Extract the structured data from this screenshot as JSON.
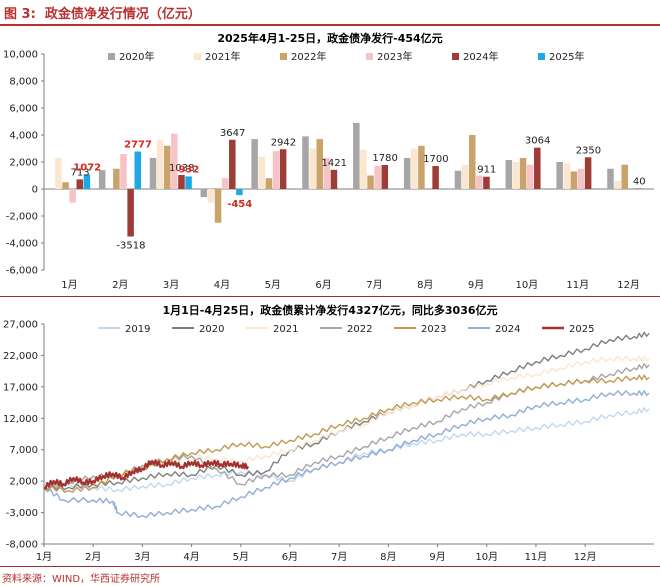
{
  "figure": {
    "label": "图 3:",
    "title": "政金债净发行情况（亿元）",
    "source": "资料来源：WIND，华西证券研究所"
  },
  "colors": {
    "accent": "#b8312f",
    "2019": "#c3d7ee",
    "2020": "#7f7f7f",
    "2021": "#fbe6d0",
    "2022": "#a6a6a6",
    "2023": "#c09a52",
    "2024": "#8faed3",
    "2025": "#a6302e"
  },
  "chart_data": [
    {
      "type": "bar",
      "title": "2025年4月1-25日，政金债净发行-454亿元",
      "categories": [
        "1月",
        "2月",
        "3月",
        "4月",
        "5月",
        "6月",
        "7月",
        "8月",
        "9月",
        "10月",
        "11月",
        "12月"
      ],
      "ylim": [
        -6000,
        10000
      ],
      "yticks": [
        "-6,000",
        "-4,000",
        "-2,000",
        "0",
        "2,000",
        "4,000",
        "6,000",
        "8,000",
        "10,000"
      ],
      "legend_position": "top",
      "series": [
        {
          "name": "2020年",
          "color": "#a6a6a6",
          "values": [
            0,
            1400,
            2300,
            -600,
            3700,
            3900,
            4900,
            2300,
            1350,
            2150,
            2000,
            1500
          ]
        },
        {
          "name": "2021年",
          "color": "#fbe6cf",
          "values": [
            2300,
            0,
            3600,
            -1000,
            2400,
            3000,
            2900,
            3000,
            1800,
            2000,
            1900,
            600
          ]
        },
        {
          "name": "2022年",
          "color": "#c9a36a",
          "values": [
            500,
            1500,
            3200,
            -2500,
            800,
            3700,
            1000,
            3200,
            4000,
            2300,
            1300,
            1800
          ]
        },
        {
          "name": "2023年",
          "color": "#f6c4c7",
          "values": [
            -1000,
            2600,
            4100,
            800,
            2800,
            2300,
            1700,
            0,
            1000,
            1800,
            1500,
            0
          ]
        },
        {
          "name": "2024年",
          "color": "#9e3c37",
          "values": [
            713,
            -3518,
            1038,
            3647,
            2942,
            1421,
            1780,
            1700,
            911,
            3064,
            2350,
            40
          ]
        },
        {
          "name": "2025年",
          "color": "#1ea8e6",
          "values": [
            1072,
            2777,
            932,
            -454,
            null,
            null,
            null,
            null,
            null,
            null,
            null,
            null
          ]
        }
      ],
      "data_labels": [
        {
          "category": 0,
          "series": "2024年",
          "text": "713",
          "color": "#222222"
        },
        {
          "category": 0,
          "series": "2025年",
          "text": "1072",
          "color": "#d72a23"
        },
        {
          "category": 1,
          "series": "2024年",
          "text": "-3518",
          "color": "#222222"
        },
        {
          "category": 1,
          "series": "2025年",
          "text": "2777",
          "color": "#d72a23"
        },
        {
          "category": 2,
          "series": "2024年",
          "text": "1038",
          "color": "#222222"
        },
        {
          "category": 2,
          "series": "2025年",
          "text": "932",
          "color": "#d72a23"
        },
        {
          "category": 3,
          "series": "2024年",
          "text": "3647",
          "color": "#222222"
        },
        {
          "category": 3,
          "series": "2025年",
          "text": "-454",
          "color": "#d72a23"
        },
        {
          "category": 4,
          "series": "2024年",
          "text": "2942",
          "color": "#222222"
        },
        {
          "category": 5,
          "series": "2024年",
          "text": "1421",
          "color": "#222222"
        },
        {
          "category": 6,
          "series": "2024年",
          "text": "1780",
          "color": "#222222"
        },
        {
          "category": 7,
          "series": "2024年",
          "text": "1700",
          "color": "#222222"
        },
        {
          "category": 8,
          "series": "2024年",
          "text": "911",
          "color": "#222222"
        },
        {
          "category": 9,
          "series": "2024年",
          "text": "3064",
          "color": "#222222"
        },
        {
          "category": 10,
          "series": "2024年",
          "text": "2350",
          "color": "#222222"
        },
        {
          "category": 11,
          "series": "2024年",
          "text": "40",
          "color": "#222222"
        }
      ]
    },
    {
      "type": "line",
      "title": "1月1日-4月25日，政金债累计净发行4327亿元，同比多3036亿元",
      "xlabels": [
        "1月",
        "2月",
        "3月",
        "4月",
        "5月",
        "6月",
        "7月",
        "8月",
        "9月",
        "10月",
        "11月",
        "12月"
      ],
      "xlim": [
        0,
        12.4
      ],
      "ylim": [
        -8000,
        27000
      ],
      "yticks": [
        "-8,000",
        "-3,000",
        "2,000",
        "7,000",
        "12,000",
        "17,000",
        "22,000",
        "27,000"
      ],
      "legend_position": "top",
      "series": [
        {
          "name": "2019",
          "color": "#c3d7ee",
          "points": [
            [
              0,
              2000
            ],
            [
              0.5,
              1500
            ],
            [
              1,
              1000
            ],
            [
              1.5,
              600
            ],
            [
              2,
              1200
            ],
            [
              2.5,
              1500
            ],
            [
              3,
              2500
            ],
            [
              3.5,
              3000
            ],
            [
              4,
              3500
            ],
            [
              4.5,
              3000
            ],
            [
              5,
              2000
            ],
            [
              5.5,
              4000
            ],
            [
              6,
              5000
            ],
            [
              6.5,
              6500
            ],
            [
              7,
              7000
            ],
            [
              7.5,
              8000
            ],
            [
              8,
              8500
            ],
            [
              8.5,
              9500
            ],
            [
              9,
              9500
            ],
            [
              9.5,
              10000
            ],
            [
              10,
              10500
            ],
            [
              10.5,
              11000
            ],
            [
              11,
              11500
            ],
            [
              11.5,
              12500
            ],
            [
              12,
              13000
            ],
            [
              12.3,
              13500
            ]
          ]
        },
        {
          "name": "2020",
          "color": "#7f7f7f",
          "points": [
            [
              0,
              1000
            ],
            [
              0.5,
              1000
            ],
            [
              1,
              1500
            ],
            [
              1.5,
              1800
            ],
            [
              2,
              2500
            ],
            [
              2.5,
              3200
            ],
            [
              3,
              3000
            ],
            [
              3.5,
              4500
            ],
            [
              4,
              3000
            ],
            [
              4.5,
              3500
            ],
            [
              5,
              7000
            ],
            [
              5.5,
              8000
            ],
            [
              6,
              10000
            ],
            [
              6.5,
              11500
            ],
            [
              7,
              13000
            ],
            [
              7.5,
              14000
            ],
            [
              8,
              15500
            ],
            [
              8.5,
              16500
            ],
            [
              9,
              18000
            ],
            [
              9.5,
              19500
            ],
            [
              10,
              21000
            ],
            [
              10.5,
              22000
            ],
            [
              11,
              23000
            ],
            [
              11.5,
              24500
            ],
            [
              12,
              25000
            ],
            [
              12.3,
              25500
            ]
          ]
        },
        {
          "name": "2021",
          "color": "#fbe6d0",
          "points": [
            [
              0,
              1000
            ],
            [
              0.5,
              2000
            ],
            [
              1,
              2500
            ],
            [
              1.5,
              3000
            ],
            [
              2,
              4500
            ],
            [
              2.5,
              5000
            ],
            [
              3,
              6000
            ],
            [
              3.5,
              5500
            ],
            [
              4,
              5200
            ],
            [
              4.5,
              6000
            ],
            [
              5,
              7000
            ],
            [
              5.5,
              8500
            ],
            [
              6,
              10000
            ],
            [
              6.5,
              11000
            ],
            [
              7,
              13000
            ],
            [
              7.5,
              14000
            ],
            [
              8,
              15500
            ],
            [
              8.5,
              16500
            ],
            [
              9,
              17500
            ],
            [
              9.5,
              18500
            ],
            [
              10,
              19000
            ],
            [
              10.5,
              20000
            ],
            [
              11,
              21000
            ],
            [
              11.5,
              21500
            ],
            [
              12,
              21500
            ],
            [
              12.3,
              21500
            ]
          ]
        },
        {
          "name": "2022",
          "color": "#a6a6a6",
          "points": [
            [
              0,
              1000
            ],
            [
              0.5,
              1800
            ],
            [
              1,
              2800
            ],
            [
              1.5,
              2800
            ],
            [
              2,
              4500
            ],
            [
              2.5,
              5500
            ],
            [
              3,
              6000
            ],
            [
              3.5,
              4000
            ],
            [
              4,
              1500
            ],
            [
              4.5,
              3000
            ],
            [
              5,
              3000
            ],
            [
              5.5,
              5000
            ],
            [
              6,
              6000
            ],
            [
              6.5,
              7500
            ],
            [
              7,
              9000
            ],
            [
              7.5,
              10500
            ],
            [
              8,
              11500
            ],
            [
              8.5,
              13500
            ],
            [
              9,
              14500
            ],
            [
              9.5,
              16000
            ],
            [
              10,
              17000
            ],
            [
              10.5,
              17500
            ],
            [
              11,
              18000
            ],
            [
              11.5,
              19000
            ],
            [
              12,
              20000
            ],
            [
              12.3,
              20500
            ]
          ]
        },
        {
          "name": "2023",
          "color": "#c09a52",
          "points": [
            [
              0,
              1000
            ],
            [
              0.5,
              500
            ],
            [
              1,
              1000
            ],
            [
              1.5,
              3000
            ],
            [
              2,
              4000
            ],
            [
              2.5,
              5500
            ],
            [
              3,
              6500
            ],
            [
              3.5,
              7000
            ],
            [
              4,
              8000
            ],
            [
              4.5,
              7500
            ],
            [
              5,
              8500
            ],
            [
              5.5,
              9500
            ],
            [
              6,
              11000
            ],
            [
              6.5,
              12000
            ],
            [
              7,
              13500
            ],
            [
              7.5,
              14500
            ],
            [
              8,
              15000
            ],
            [
              8.5,
              15500
            ],
            [
              9,
              15000
            ],
            [
              9.5,
              16000
            ],
            [
              10,
              17000
            ],
            [
              10.5,
              17500
            ],
            [
              11,
              18000
            ],
            [
              11.5,
              18000
            ],
            [
              12,
              18500
            ],
            [
              12.3,
              18500
            ]
          ]
        },
        {
          "name": "2024",
          "color": "#8faed3",
          "points": [
            [
              0,
              1000
            ],
            [
              0.4,
              -1000
            ],
            [
              1,
              -1000
            ],
            [
              1.4,
              -1200
            ],
            [
              1.5,
              -3000
            ],
            [
              2,
              -3500
            ],
            [
              2.5,
              -3000
            ],
            [
              3,
              -2500
            ],
            [
              3.5,
              -2000
            ],
            [
              4,
              -500
            ],
            [
              4.5,
              1000
            ],
            [
              5,
              2500
            ],
            [
              5.5,
              4000
            ],
            [
              6,
              5000
            ],
            [
              6.5,
              6000
            ],
            [
              7,
              7000
            ],
            [
              7.5,
              8500
            ],
            [
              8,
              9500
            ],
            [
              8.5,
              11000
            ],
            [
              9,
              12000
            ],
            [
              9.5,
              12500
            ],
            [
              10,
              14000
            ],
            [
              10.5,
              14500
            ],
            [
              11,
              15000
            ],
            [
              11.5,
              16000
            ],
            [
              12,
              16000
            ],
            [
              12.3,
              16000
            ]
          ]
        },
        {
          "name": "2025",
          "color": "#a6302e",
          "points": [
            [
              0,
              1000
            ],
            [
              0.2,
              2000
            ],
            [
              0.4,
              1500
            ],
            [
              0.6,
              2500
            ],
            [
              0.8,
              1800
            ],
            [
              1,
              2000
            ],
            [
              1.2,
              2800
            ],
            [
              1.4,
              3200
            ],
            [
              1.6,
              2500
            ],
            [
              1.8,
              3500
            ],
            [
              2,
              4000
            ],
            [
              2.2,
              5200
            ],
            [
              2.4,
              4500
            ],
            [
              2.6,
              5000
            ],
            [
              2.8,
              4300
            ],
            [
              3,
              5000
            ],
            [
              3.2,
              4500
            ],
            [
              3.4,
              5000
            ],
            [
              3.6,
              4700
            ],
            [
              3.8,
              4800
            ],
            [
              4,
              4500
            ],
            [
              4.15,
              4327
            ]
          ]
        }
      ]
    }
  ]
}
